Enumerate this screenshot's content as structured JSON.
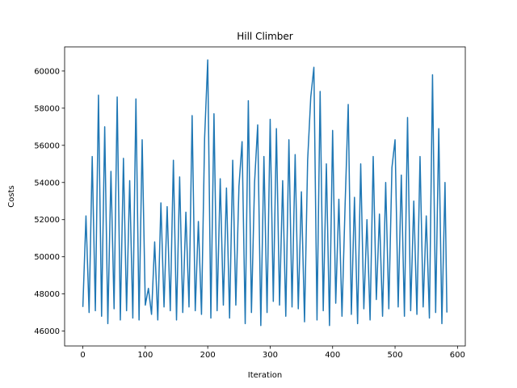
{
  "chart_data": {
    "type": "line",
    "title": "Hill Climber",
    "x_label": "Iteration",
    "y_label": "Costs",
    "color": "#1f77b4",
    "x": [
      0,
      5,
      10,
      15,
      20,
      25,
      30,
      35,
      40,
      45,
      50,
      55,
      60,
      65,
      70,
      75,
      80,
      85,
      90,
      95,
      100,
      105,
      110,
      115,
      120,
      125,
      130,
      135,
      140,
      145,
      150,
      155,
      160,
      165,
      170,
      175,
      180,
      185,
      190,
      195,
      200,
      205,
      210,
      215,
      220,
      225,
      230,
      235,
      240,
      245,
      250,
      255,
      260,
      265,
      270,
      275,
      280,
      285,
      290,
      295,
      300,
      305,
      310,
      315,
      320,
      325,
      330,
      335,
      340,
      345,
      350,
      355,
      360,
      365,
      370,
      375,
      380,
      385,
      390,
      395,
      400,
      405,
      410,
      415,
      420,
      425,
      430,
      435,
      440,
      445,
      450,
      455,
      460,
      465,
      470,
      475,
      480,
      485,
      490,
      495,
      500,
      505,
      510,
      515,
      520,
      525,
      530,
      535,
      540,
      545,
      550,
      555,
      560,
      565,
      570,
      575,
      580,
      583
    ],
    "values": [
      47300,
      52200,
      47000,
      55400,
      47100,
      58700,
      46800,
      57000,
      46400,
      54600,
      47200,
      58600,
      46600,
      55300,
      47100,
      54100,
      46700,
      58500,
      46600,
      56300,
      47400,
      48300,
      46900,
      50800,
      46600,
      52900,
      47300,
      52700,
      47100,
      55200,
      46600,
      54300,
      47000,
      52400,
      47300,
      57600,
      47100,
      51900,
      46900,
      56400,
      60600,
      46700,
      57700,
      47100,
      54200,
      47400,
      53700,
      46700,
      55200,
      47400,
      53800,
      56200,
      46400,
      58400,
      47000,
      54000,
      57100,
      46300,
      55400,
      47000,
      57400,
      47600,
      56900,
      47400,
      54100,
      46800,
      56300,
      47300,
      55500,
      47200,
      53500,
      46500,
      55200,
      58600,
      60200,
      46600,
      58900,
      47100,
      55000,
      46300,
      56800,
      47500,
      53100,
      46800,
      52800,
      58200,
      46900,
      53200,
      46400,
      55000,
      47200,
      52000,
      46600,
      55400,
      47700,
      52300,
      46800,
      54000,
      47200,
      54800,
      56300,
      47300,
      54400,
      46800,
      57500,
      47100,
      53000,
      46900,
      55400,
      47300,
      52200,
      46700,
      59800,
      47000,
      56900,
      46400,
      54000,
      47000
    ],
    "xlim": [
      -29.2,
      612.5
    ],
    "ylim": [
      45200,
      61300
    ],
    "xticks": [
      0,
      100,
      200,
      300,
      400,
      500,
      600
    ],
    "yticks": [
      46000,
      48000,
      50000,
      52000,
      54000,
      56000,
      58000,
      60000
    ]
  }
}
